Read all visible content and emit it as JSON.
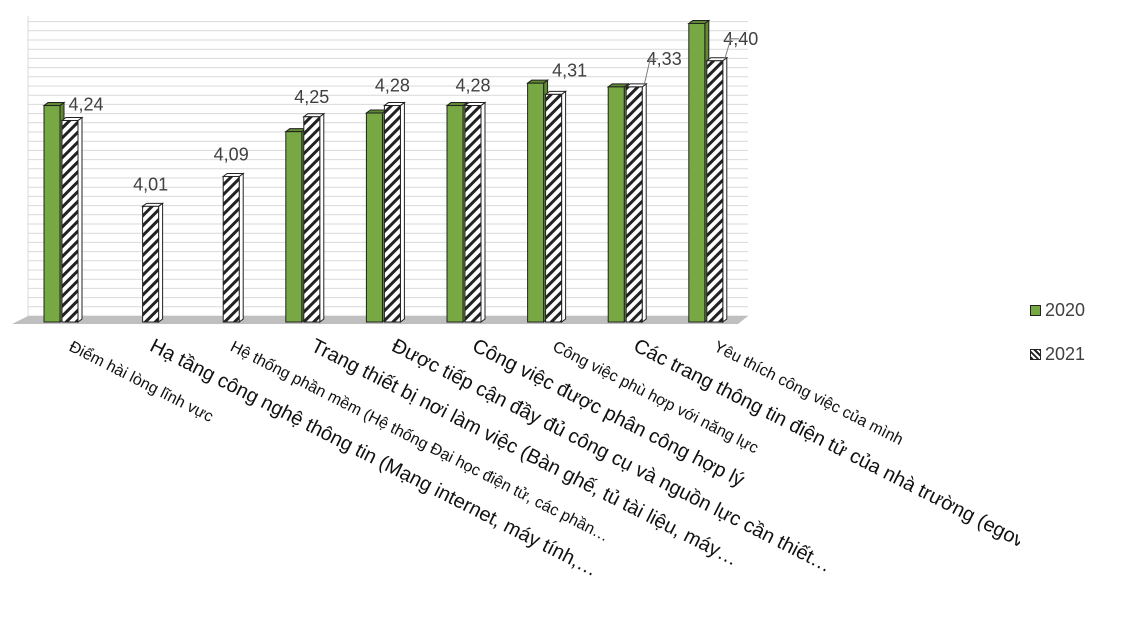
{
  "chart_data": {
    "type": "bar",
    "categories": [
      "Điểm hài lòng lĩnh vực",
      "Hạ tầng công nghệ thông tin (Mạng internet, máy tính,…",
      "Hệ thống phần mềm (Hệ thống Đại học điện tử, các phần…",
      "Trang thiết bị nơi làm việc (Bàn ghế, tủ tài liệu, máy…",
      "Được tiếp cận đầy đủ công cụ và nguồn lực cần thiết…",
      "Công việc được phân công hợp lý",
      "Công việc phù hợp với năng lực",
      "Các trang thông tin điện tử của nhà trường (egov,",
      "Yêu thích công việc của mình"
    ],
    "series": [
      {
        "name": "2020",
        "values": [
          4.28,
          null,
          null,
          4.21,
          4.26,
          4.28,
          4.34,
          4.33,
          4.5
        ]
      },
      {
        "name": "2021",
        "values": [
          4.24,
          4.01,
          4.09,
          4.25,
          4.28,
          4.28,
          4.31,
          4.33,
          4.4
        ]
      }
    ],
    "data_labels": [
      "4,24",
      "4,01",
      "4,09",
      "4,25",
      "4,28",
      "4,28",
      "4,31",
      "4,33",
      "4,40"
    ],
    "ylim": [
      3.7,
      4.52
    ],
    "grid": true,
    "legend_position": "right",
    "colors": {
      "2020": "#77a844",
      "2021_hatch": "#222222",
      "floor": "#bfbfbf",
      "grid": "#d9d9d9"
    }
  },
  "legend": {
    "items": [
      "2020",
      "2021"
    ]
  }
}
